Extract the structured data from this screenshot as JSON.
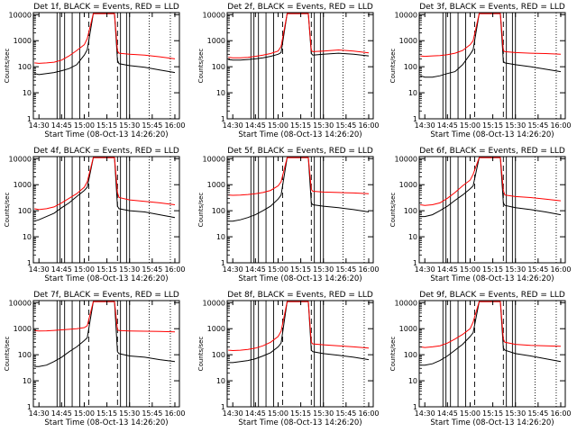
{
  "chart_data": {
    "type": "line",
    "ylabel": "Counts/sec",
    "xlabel": "Start Time (08-Oct-13 14:26:20)",
    "x_tick_labels": [
      "14:30",
      "14:45",
      "15:00",
      "15:15",
      "15:30",
      "15:45",
      "16:00"
    ],
    "x_tick_minutes_after_14_00": [
      30,
      45,
      60,
      75,
      90,
      105,
      120
    ],
    "xlim_minutes_after_14_00": [
      26.3,
      123
    ],
    "y_scale": "log",
    "ylim": [
      1,
      12000
    ],
    "y_tick_labels": [
      "1",
      "10",
      "100",
      "1000",
      "10000"
    ],
    "y_tick_values": [
      1,
      10,
      100,
      1000,
      10000
    ],
    "solid_vertical_lines_minutes": [
      42,
      44,
      47,
      52,
      57,
      84,
      88,
      90
    ],
    "dashed_vertical_lines_minutes": [
      63,
      82
    ],
    "dotted_vertical_lines_minutes": [
      103,
      117
    ],
    "colors": {
      "events": "#000000",
      "lld": "#ff0000",
      "axes": "#000000"
    },
    "panels": [
      {
        "title": "Det 1f, BLACK = Events, RED = LLD",
        "series": [
          {
            "name": "Events",
            "color": "#000000",
            "x": [
              27,
              30,
              35,
              40,
              45,
              50,
              55,
              60,
              62,
              66,
              74,
              80,
              82,
              83,
              90,
              100,
              110,
              120
            ],
            "y": [
              55,
              50,
              55,
              60,
              70,
              85,
              120,
              280,
              450,
              11000,
              11000,
              11000,
              180,
              130,
              110,
              95,
              75,
              60
            ]
          },
          {
            "name": "LLD",
            "color": "#ff0000",
            "x": [
              27,
              30,
              35,
              40,
              45,
              50,
              55,
              60,
              62,
              66,
              74,
              80,
              82,
              83,
              90,
              100,
              110,
              120
            ],
            "y": [
              140,
              135,
              140,
              150,
              180,
              260,
              420,
              700,
              1200,
              11000,
              11000,
              11000,
              400,
              330,
              300,
              280,
              240,
              200
            ]
          }
        ]
      },
      {
        "title": "Det 2f, BLACK = Events, RED = LLD",
        "series": [
          {
            "name": "Events",
            "color": "#000000",
            "x": [
              27,
              30,
              35,
              40,
              45,
              50,
              55,
              60,
              62,
              66,
              74,
              80,
              82,
              83,
              90,
              100,
              110,
              120
            ],
            "y": [
              190,
              180,
              180,
              190,
              200,
              220,
              250,
              300,
              350,
              11000,
              11000,
              11000,
              320,
              280,
              300,
              330,
              300,
              260
            ]
          },
          {
            "name": "LLD",
            "color": "#ff0000",
            "x": [
              27,
              30,
              35,
              40,
              45,
              50,
              55,
              60,
              62,
              66,
              74,
              80,
              82,
              83,
              90,
              100,
              110,
              120
            ],
            "y": [
              230,
              220,
              220,
              230,
              250,
              280,
              320,
              400,
              600,
              11000,
              11000,
              11000,
              420,
              380,
              400,
              440,
              400,
              340
            ]
          }
        ]
      },
      {
        "title": "Det 3f, BLACK = Events, RED = LLD",
        "series": [
          {
            "name": "Events",
            "color": "#000000",
            "x": [
              27,
              30,
              35,
              40,
              45,
              50,
              55,
              60,
              62,
              66,
              74,
              80,
              82,
              83,
              90,
              100,
              110,
              120
            ],
            "y": [
              45,
              40,
              40,
              45,
              55,
              65,
              120,
              300,
              450,
              11000,
              11000,
              11000,
              160,
              140,
              120,
              100,
              80,
              65
            ]
          },
          {
            "name": "LLD",
            "color": "#ff0000",
            "x": [
              27,
              30,
              35,
              40,
              45,
              50,
              55,
              60,
              62,
              66,
              74,
              80,
              82,
              83,
              90,
              100,
              110,
              120
            ],
            "y": [
              260,
              250,
              260,
              270,
              290,
              330,
              420,
              700,
              1000,
              11000,
              11000,
              11000,
              420,
              380,
              350,
              330,
              320,
              300
            ]
          }
        ]
      },
      {
        "title": "Det 4f, BLACK = Events, RED = LLD",
        "series": [
          {
            "name": "Events",
            "color": "#000000",
            "x": [
              27,
              30,
              35,
              40,
              45,
              50,
              55,
              60,
              62,
              66,
              74,
              80,
              82,
              83,
              90,
              100,
              110,
              120
            ],
            "y": [
              40,
              45,
              60,
              80,
              130,
              200,
              350,
              600,
              800,
              11000,
              11000,
              11000,
              150,
              120,
              100,
              90,
              70,
              55
            ]
          },
          {
            "name": "LLD",
            "color": "#ff0000",
            "x": [
              27,
              30,
              35,
              40,
              45,
              50,
              55,
              60,
              62,
              66,
              74,
              80,
              82,
              83,
              90,
              100,
              110,
              120
            ],
            "y": [
              120,
              110,
              120,
              140,
              200,
              300,
              450,
              800,
              1300,
              11000,
              11000,
              11000,
              500,
              320,
              260,
              230,
              200,
              170
            ]
          }
        ]
      },
      {
        "title": "Det 5f, BLACK = Events, RED = LLD",
        "series": [
          {
            "name": "Events",
            "color": "#000000",
            "x": [
              27,
              30,
              35,
              40,
              45,
              50,
              55,
              60,
              62,
              66,
              74,
              80,
              82,
              83,
              90,
              100,
              110,
              120
            ],
            "y": [
              40,
              40,
              45,
              55,
              70,
              100,
              150,
              280,
              400,
              11000,
              11000,
              11000,
              200,
              170,
              150,
              130,
              110,
              90
            ]
          },
          {
            "name": "LLD",
            "color": "#ff0000",
            "x": [
              27,
              30,
              35,
              40,
              45,
              50,
              55,
              60,
              62,
              66,
              74,
              80,
              82,
              83,
              90,
              100,
              110,
              120
            ],
            "y": [
              400,
              390,
              400,
              420,
              450,
              500,
              600,
              900,
              1300,
              11000,
              11000,
              11000,
              650,
              560,
              520,
              500,
              480,
              450
            ]
          }
        ]
      },
      {
        "title": "Det 6f, BLACK = Events, RED = LLD",
        "series": [
          {
            "name": "Events",
            "color": "#000000",
            "x": [
              27,
              30,
              35,
              40,
              45,
              50,
              55,
              60,
              62,
              66,
              74,
              80,
              82,
              83,
              90,
              100,
              110,
              120
            ],
            "y": [
              60,
              60,
              70,
              100,
              150,
              250,
              400,
              700,
              900,
              11000,
              11000,
              11000,
              200,
              160,
              130,
              110,
              90,
              70
            ]
          },
          {
            "name": "LLD",
            "color": "#ff0000",
            "x": [
              27,
              30,
              35,
              40,
              45,
              50,
              55,
              60,
              62,
              66,
              74,
              80,
              82,
              83,
              90,
              100,
              110,
              120
            ],
            "y": [
              170,
              160,
              170,
              200,
              300,
              500,
              900,
              1500,
              2500,
              11000,
              11000,
              11000,
              600,
              400,
              350,
              320,
              280,
              240
            ]
          }
        ]
      },
      {
        "title": "Det 7f, BLACK = Events, RED = LLD",
        "series": [
          {
            "name": "Events",
            "color": "#000000",
            "x": [
              27,
              30,
              35,
              40,
              45,
              50,
              55,
              60,
              62,
              66,
              74,
              80,
              82,
              83,
              90,
              100,
              110,
              120
            ],
            "y": [
              35,
              35,
              40,
              55,
              80,
              130,
              200,
              350,
              450,
              11000,
              11000,
              11000,
              130,
              110,
              90,
              80,
              65,
              55
            ]
          },
          {
            "name": "LLD",
            "color": "#ff0000",
            "x": [
              27,
              30,
              35,
              40,
              45,
              50,
              55,
              60,
              62,
              66,
              74,
              80,
              82,
              83,
              90,
              100,
              110,
              120
            ],
            "y": [
              850,
              820,
              830,
              860,
              900,
              950,
              1000,
              1100,
              1300,
              11000,
              11000,
              11000,
              900,
              850,
              820,
              800,
              780,
              750
            ]
          }
        ]
      },
      {
        "title": "Det 8f, BLACK = Events, RED = LLD",
        "series": [
          {
            "name": "Events",
            "color": "#000000",
            "x": [
              27,
              30,
              35,
              40,
              45,
              50,
              55,
              60,
              62,
              66,
              74,
              80,
              82,
              83,
              90,
              100,
              110,
              120
            ],
            "y": [
              50,
              50,
              55,
              60,
              70,
              90,
              120,
              200,
              280,
              11000,
              11000,
              11000,
              150,
              130,
              110,
              95,
              80,
              65
            ]
          },
          {
            "name": "LLD",
            "color": "#ff0000",
            "x": [
              27,
              30,
              35,
              40,
              45,
              50,
              55,
              60,
              62,
              66,
              74,
              80,
              82,
              83,
              90,
              100,
              110,
              120
            ],
            "y": [
              150,
              145,
              150,
              160,
              180,
              220,
              300,
              500,
              800,
              11000,
              11000,
              11000,
              300,
              260,
              240,
              220,
              200,
              180
            ]
          }
        ]
      },
      {
        "title": "Det 9f, BLACK = Events, RED = LLD",
        "series": [
          {
            "name": "Events",
            "color": "#000000",
            "x": [
              27,
              30,
              35,
              40,
              45,
              50,
              55,
              60,
              62,
              66,
              74,
              80,
              82,
              83,
              90,
              100,
              110,
              120
            ],
            "y": [
              40,
              40,
              45,
              60,
              90,
              150,
              250,
              500,
              700,
              11000,
              11000,
              11000,
              180,
              150,
              110,
              90,
              70,
              55
            ]
          },
          {
            "name": "LLD",
            "color": "#ff0000",
            "x": [
              27,
              30,
              35,
              40,
              45,
              50,
              55,
              60,
              62,
              66,
              74,
              80,
              82,
              83,
              90,
              100,
              110,
              120
            ],
            "y": [
              200,
              190,
              200,
              220,
              280,
              400,
              600,
              1000,
              1800,
              11000,
              11000,
              11000,
              400,
              300,
              250,
              230,
              220,
              210
            ]
          }
        ]
      }
    ]
  }
}
